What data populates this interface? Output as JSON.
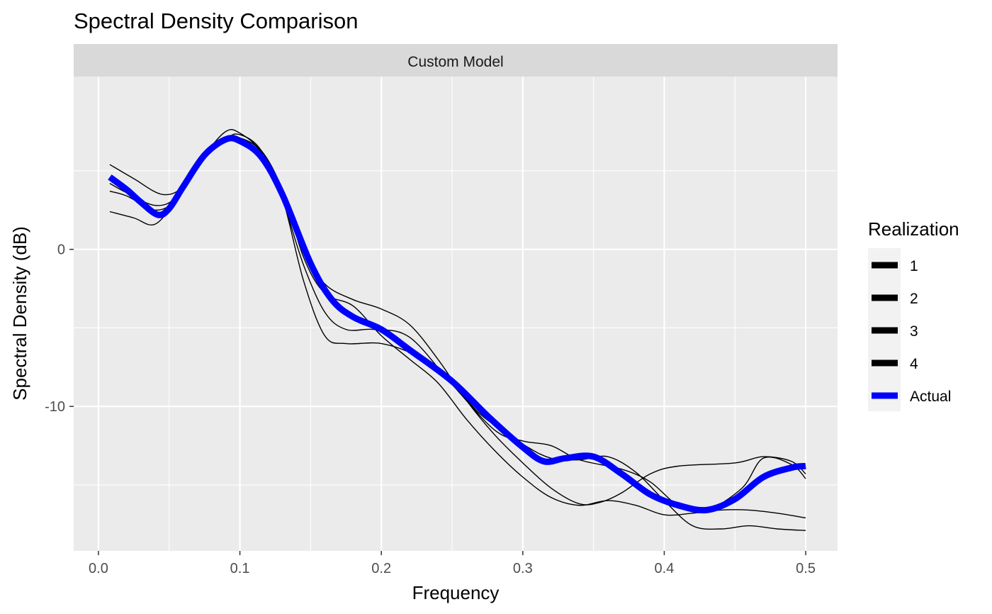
{
  "chart_data": {
    "type": "line",
    "title": "Spectral Density Comparison",
    "facet_label": "Custom Model",
    "xlabel": "Frequency",
    "ylabel": "Spectral Density (dB)",
    "xlim": [
      -0.0175,
      0.5225
    ],
    "ylim": [
      -19.2,
      11.0
    ],
    "x_ticks": [
      0.0,
      0.1,
      0.2,
      0.3,
      0.4,
      0.5
    ],
    "x_tick_labels": [
      "0.0",
      "0.1",
      "0.2",
      "0.3",
      "0.4",
      "0.5"
    ],
    "y_ticks": [
      -10,
      0
    ],
    "y_tick_labels": [
      "-10",
      "0"
    ],
    "grid": true,
    "legend": {
      "title": "Realization",
      "position": "right",
      "entries": [
        "1",
        "2",
        "3",
        "4",
        "Actual"
      ]
    },
    "series": [
      {
        "name": "1",
        "color": "#000000",
        "points": [
          [
            0.008,
            4.2
          ],
          [
            0.02,
            3.6
          ],
          [
            0.04,
            2.8
          ],
          [
            0.055,
            3.3
          ],
          [
            0.07,
            5.3
          ],
          [
            0.09,
            7.0
          ],
          [
            0.1,
            7.3
          ],
          [
            0.115,
            6.3
          ],
          [
            0.13,
            3.2
          ],
          [
            0.145,
            -1.0
          ],
          [
            0.16,
            -4.0
          ],
          [
            0.175,
            -5.1
          ],
          [
            0.195,
            -5.1
          ],
          [
            0.22,
            -5.6
          ],
          [
            0.25,
            -8.6
          ],
          [
            0.28,
            -11.5
          ],
          [
            0.3,
            -12.2
          ],
          [
            0.32,
            -12.5
          ],
          [
            0.34,
            -13.4
          ],
          [
            0.37,
            -14.0
          ],
          [
            0.39,
            -14.8
          ],
          [
            0.41,
            -16.3
          ],
          [
            0.43,
            -16.6
          ],
          [
            0.455,
            -15.2
          ],
          [
            0.47,
            -13.3
          ],
          [
            0.49,
            -13.7
          ],
          [
            0.5,
            -14.6
          ]
        ]
      },
      {
        "name": "2",
        "color": "#000000",
        "points": [
          [
            0.008,
            2.4
          ],
          [
            0.025,
            2.0
          ],
          [
            0.04,
            1.6
          ],
          [
            0.055,
            3.2
          ],
          [
            0.07,
            5.5
          ],
          [
            0.09,
            7.1
          ],
          [
            0.1,
            7.1
          ],
          [
            0.115,
            6.2
          ],
          [
            0.13,
            3.3
          ],
          [
            0.145,
            -2.0
          ],
          [
            0.16,
            -5.5
          ],
          [
            0.175,
            -6.0
          ],
          [
            0.2,
            -6.0
          ],
          [
            0.225,
            -6.8
          ],
          [
            0.25,
            -8.5
          ],
          [
            0.27,
            -10.5
          ],
          [
            0.3,
            -12.4
          ],
          [
            0.32,
            -13.3
          ],
          [
            0.34,
            -13.4
          ],
          [
            0.36,
            -13.2
          ],
          [
            0.38,
            -14.2
          ],
          [
            0.4,
            -16.0
          ],
          [
            0.42,
            -17.6
          ],
          [
            0.44,
            -17.8
          ],
          [
            0.46,
            -17.6
          ],
          [
            0.48,
            -17.8
          ],
          [
            0.5,
            -17.9
          ]
        ]
      },
      {
        "name": "3",
        "color": "#000000",
        "points": [
          [
            0.008,
            5.4
          ],
          [
            0.025,
            4.5
          ],
          [
            0.045,
            3.5
          ],
          [
            0.06,
            4.0
          ],
          [
            0.075,
            6.0
          ],
          [
            0.09,
            7.5
          ],
          [
            0.1,
            7.4
          ],
          [
            0.115,
            6.2
          ],
          [
            0.13,
            3.5
          ],
          [
            0.145,
            0.0
          ],
          [
            0.16,
            -2.2
          ],
          [
            0.18,
            -3.2
          ],
          [
            0.2,
            -3.8
          ],
          [
            0.22,
            -4.8
          ],
          [
            0.24,
            -7.0
          ],
          [
            0.26,
            -9.6
          ],
          [
            0.28,
            -11.8
          ],
          [
            0.3,
            -13.6
          ],
          [
            0.32,
            -15.2
          ],
          [
            0.34,
            -16.2
          ],
          [
            0.355,
            -16.1
          ],
          [
            0.37,
            -15.5
          ],
          [
            0.39,
            -14.3
          ],
          [
            0.41,
            -13.8
          ],
          [
            0.45,
            -13.6
          ],
          [
            0.47,
            -13.2
          ],
          [
            0.49,
            -13.5
          ],
          [
            0.5,
            -14.3
          ]
        ]
      },
      {
        "name": "4",
        "color": "#000000",
        "points": [
          [
            0.008,
            3.7
          ],
          [
            0.02,
            3.4
          ],
          [
            0.04,
            2.5
          ],
          [
            0.055,
            3.2
          ],
          [
            0.07,
            5.5
          ],
          [
            0.09,
            6.9
          ],
          [
            0.1,
            7.0
          ],
          [
            0.115,
            6.3
          ],
          [
            0.13,
            3.8
          ],
          [
            0.145,
            -0.5
          ],
          [
            0.16,
            -2.8
          ],
          [
            0.18,
            -3.6
          ],
          [
            0.2,
            -5.5
          ],
          [
            0.22,
            -7.0
          ],
          [
            0.24,
            -8.5
          ],
          [
            0.26,
            -10.8
          ],
          [
            0.28,
            -12.8
          ],
          [
            0.3,
            -14.5
          ],
          [
            0.32,
            -15.8
          ],
          [
            0.34,
            -16.3
          ],
          [
            0.36,
            -16.0
          ],
          [
            0.38,
            -16.3
          ],
          [
            0.4,
            -16.9
          ],
          [
            0.42,
            -16.8
          ],
          [
            0.44,
            -16.6
          ],
          [
            0.46,
            -16.6
          ],
          [
            0.48,
            -16.8
          ],
          [
            0.5,
            -17.1
          ]
        ]
      },
      {
        "name": "Actual",
        "color": "#0000ff",
        "points": [
          [
            0.008,
            4.6
          ],
          [
            0.02,
            3.8
          ],
          [
            0.03,
            3.0
          ],
          [
            0.042,
            2.2
          ],
          [
            0.05,
            2.6
          ],
          [
            0.06,
            4.0
          ],
          [
            0.075,
            6.0
          ],
          [
            0.09,
            7.0
          ],
          [
            0.1,
            6.9
          ],
          [
            0.115,
            5.9
          ],
          [
            0.13,
            3.5
          ],
          [
            0.15,
            -0.9
          ],
          [
            0.165,
            -3.2
          ],
          [
            0.18,
            -4.3
          ],
          [
            0.2,
            -5.1
          ],
          [
            0.22,
            -6.4
          ],
          [
            0.25,
            -8.4
          ],
          [
            0.275,
            -10.6
          ],
          [
            0.3,
            -12.6
          ],
          [
            0.315,
            -13.5
          ],
          [
            0.33,
            -13.3
          ],
          [
            0.35,
            -13.2
          ],
          [
            0.37,
            -14.3
          ],
          [
            0.39,
            -15.6
          ],
          [
            0.41,
            -16.3
          ],
          [
            0.43,
            -16.6
          ],
          [
            0.45,
            -15.9
          ],
          [
            0.47,
            -14.5
          ],
          [
            0.49,
            -13.9
          ],
          [
            0.5,
            -13.8
          ]
        ]
      }
    ]
  }
}
